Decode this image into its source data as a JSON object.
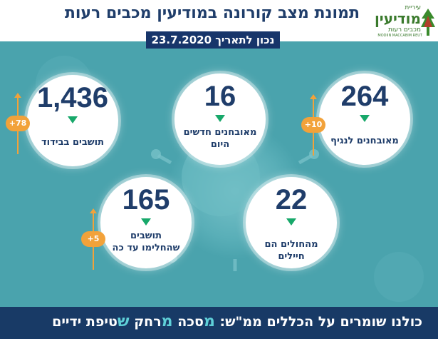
{
  "header": {
    "title": "תמונת מצב קורונה במודיעין מכבים רעות",
    "date": "נכון לתאריך 23.7.2020"
  },
  "logo": {
    "small": "עיריית",
    "main": "מודיעין",
    "sub": "מכבים רעות",
    "english": "MODIIN MACCABIM REUT"
  },
  "stats": [
    {
      "value": "264",
      "label": "מאובחנים לנגיף",
      "delta": "+10"
    },
    {
      "value": "16",
      "label_line1": "מאובחנים חדשים",
      "label_line2": "היום"
    },
    {
      "value": "1,436",
      "label": "תושבים בבידוד",
      "delta": "+78"
    },
    {
      "value": "22",
      "label": "מהחולים הם חיילים"
    },
    {
      "value": "165",
      "label_line1": "תושבים",
      "label_line2": "שהחלימו עד כה",
      "delta": "+5"
    }
  ],
  "footer": {
    "prefix": "כולנו שומרים על הכללים ממ\"ש:",
    "w1_first": "מ",
    "w1_rest": "סכה",
    "w2_first": "מ",
    "w2_rest": "רחק",
    "w3_first": "ש",
    "w3_rest": "טיפת ידיים"
  },
  "colors": {
    "background": "#4aa3ad",
    "navy": "#1f3d6a",
    "footer": "#183a66",
    "accent_green": "#17a86a",
    "accent_orange": "#f2a23a",
    "highlight": "#5fd0d8"
  }
}
